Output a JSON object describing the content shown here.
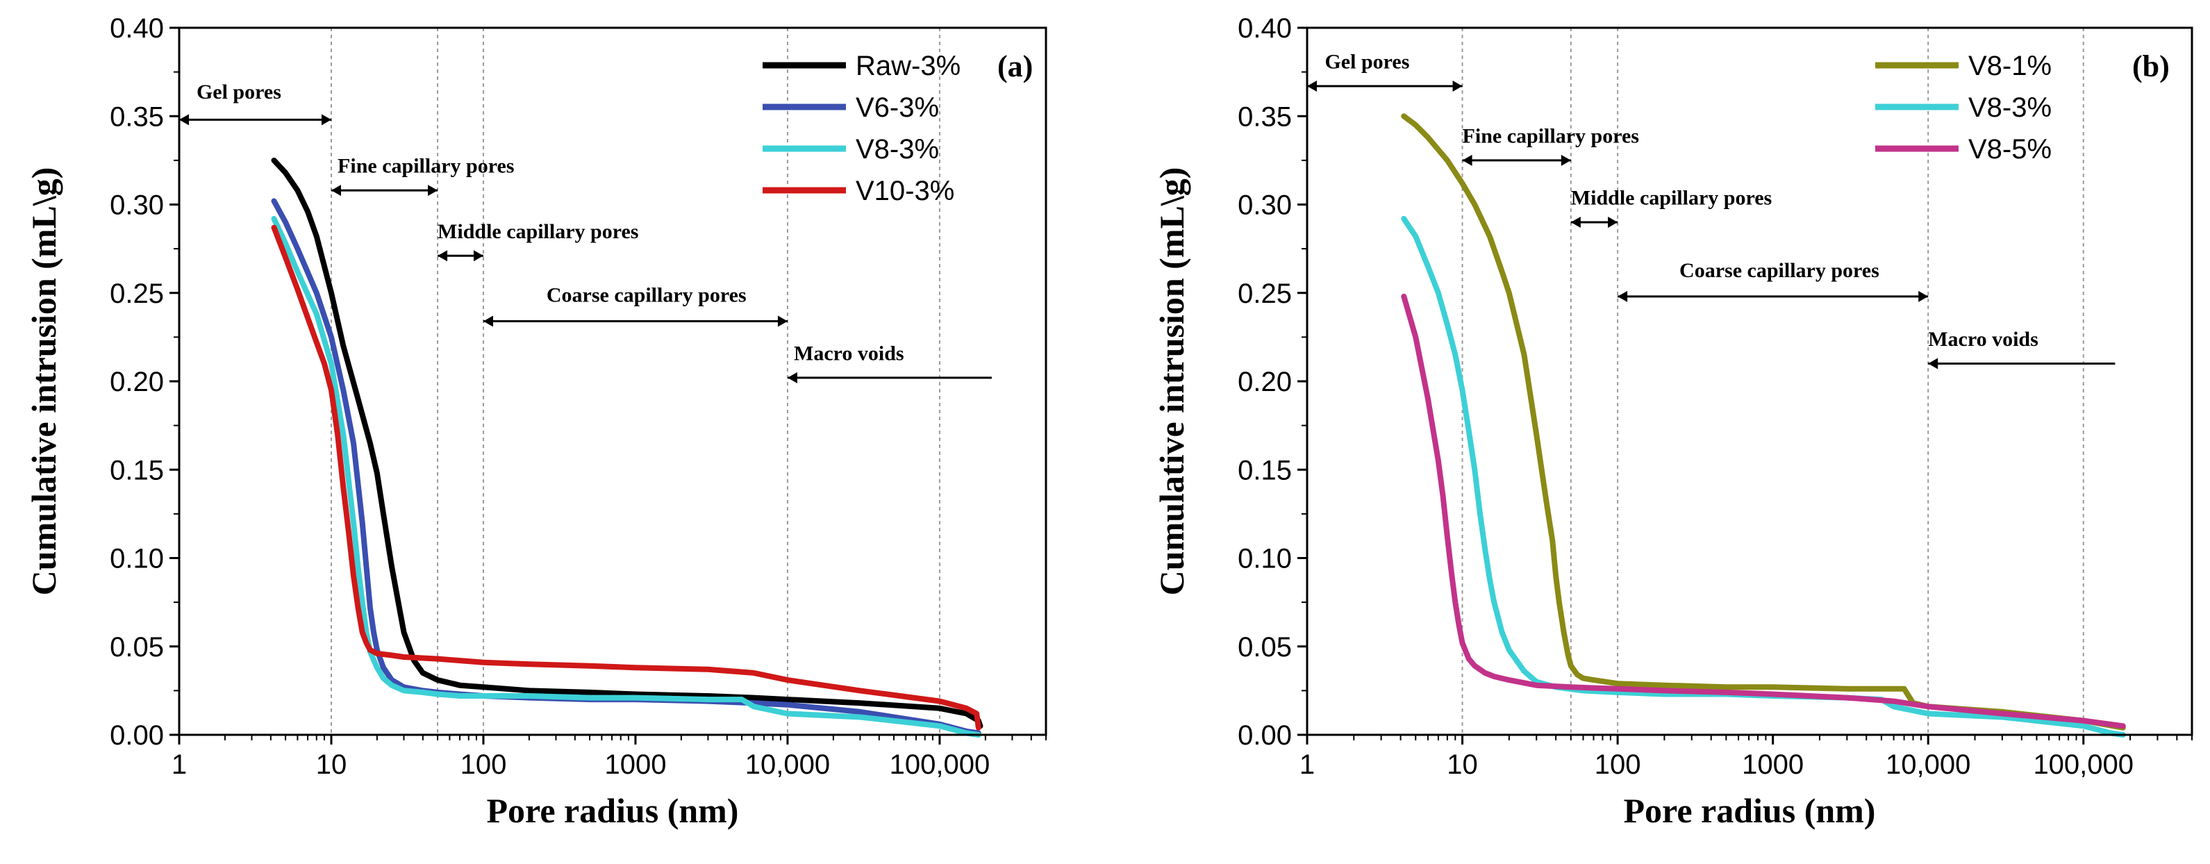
{
  "chart_data": [
    {
      "type": "line",
      "panel": "(a)",
      "xlabel": "Pore radius (nm)",
      "ylabel": "Cumulative intrusion (mL\\g)",
      "xscale": "log",
      "xlim": [
        1,
        500000
      ],
      "ylim": [
        0,
        0.4
      ],
      "xticks": [
        1,
        10,
        100,
        1000,
        10000,
        100000
      ],
      "xtick_labels": [
        "1",
        "10",
        "100",
        "1000",
        "10,000",
        "100,000"
      ],
      "yticks": [
        0,
        0.05,
        0.1,
        0.15,
        0.2,
        0.25,
        0.3,
        0.35,
        0.4
      ],
      "ytick_labels": [
        "0.00",
        "0.05",
        "0.10",
        "0.15",
        "0.20",
        "0.25",
        "0.30",
        "0.35",
        "0.40"
      ],
      "vlines": [
        10,
        50,
        100,
        10000,
        100000
      ],
      "legend_position": "top-right",
      "annotations": [
        {
          "label": "Gel pores",
          "from": 1,
          "to": 10,
          "y": 0.348,
          "arrow": "both",
          "label_y": 0.36,
          "label_x": 1.3
        },
        {
          "label": "Fine capillary pores",
          "from": 10,
          "to": 50,
          "y": 0.308,
          "arrow": "both",
          "label_y": 0.318,
          "label_x": 11
        },
        {
          "label": "Middle capillary pores",
          "from": 50,
          "to": 100,
          "y": 0.271,
          "arrow": "both",
          "label_y": 0.281,
          "label_x": 50
        },
        {
          "label": "Coarse capillary pores",
          "from": 100,
          "to": 10000,
          "y": 0.234,
          "arrow": "both",
          "label_y": 0.245,
          "label_x": 260
        },
        {
          "label": "Macro voids",
          "from": 10000,
          "to": 220000,
          "y": 0.202,
          "arrow": "left",
          "label_y": 0.212,
          "label_x": 11000
        }
      ],
      "series": [
        {
          "name": "Raw-3%",
          "color": "#000000",
          "x": [
            4.2,
            5,
            6,
            7,
            8,
            10,
            12,
            15,
            18,
            20,
            22,
            25,
            28,
            30,
            35,
            40,
            50,
            70,
            100,
            200,
            500,
            1000,
            3000,
            6000,
            10000,
            30000,
            100000,
            150000,
            180000,
            185000
          ],
          "y": [
            0.325,
            0.318,
            0.308,
            0.296,
            0.282,
            0.25,
            0.22,
            0.19,
            0.165,
            0.148,
            0.125,
            0.095,
            0.072,
            0.058,
            0.042,
            0.035,
            0.031,
            0.028,
            0.027,
            0.025,
            0.024,
            0.023,
            0.022,
            0.021,
            0.02,
            0.018,
            0.015,
            0.012,
            0.008,
            0.005
          ]
        },
        {
          "name": "V6-3%",
          "color": "#3a4fb0",
          "x": [
            4.2,
            5,
            6,
            8,
            10,
            12,
            14,
            16,
            17,
            18,
            19,
            20,
            22,
            25,
            30,
            40,
            50,
            70,
            100,
            200,
            500,
            1000,
            3000,
            6000,
            10000,
            30000,
            100000,
            150000,
            180000
          ],
          "y": [
            0.302,
            0.29,
            0.275,
            0.25,
            0.225,
            0.195,
            0.165,
            0.12,
            0.095,
            0.072,
            0.058,
            0.048,
            0.038,
            0.031,
            0.027,
            0.025,
            0.024,
            0.023,
            0.022,
            0.021,
            0.02,
            0.02,
            0.019,
            0.018,
            0.017,
            0.013,
            0.006,
            0.002,
            0.001
          ]
        },
        {
          "name": "V8-3%",
          "color": "#3cd0d6",
          "x": [
            4.2,
            5,
            6,
            8,
            10,
            12,
            14,
            15,
            16,
            17,
            18,
            20,
            22,
            25,
            30,
            40,
            50,
            70,
            100,
            200,
            500,
            1000,
            3000,
            5000,
            6000,
            10000,
            30000,
            100000,
            150000,
            180000
          ],
          "y": [
            0.292,
            0.278,
            0.262,
            0.238,
            0.21,
            0.17,
            0.12,
            0.095,
            0.075,
            0.058,
            0.047,
            0.038,
            0.032,
            0.028,
            0.025,
            0.024,
            0.023,
            0.022,
            0.022,
            0.022,
            0.021,
            0.021,
            0.02,
            0.02,
            0.016,
            0.012,
            0.01,
            0.005,
            0.001,
            0.0
          ]
        },
        {
          "name": "V10-3%",
          "color": "#d01818",
          "x": [
            4.2,
            5,
            6,
            8,
            9,
            10,
            11,
            12,
            13,
            14,
            15,
            16,
            17,
            18,
            20,
            25,
            30,
            50,
            100,
            200,
            500,
            1000,
            3000,
            6000,
            10000,
            30000,
            100000,
            150000,
            175000,
            180000
          ],
          "y": [
            0.287,
            0.27,
            0.252,
            0.222,
            0.21,
            0.195,
            0.17,
            0.14,
            0.115,
            0.09,
            0.072,
            0.058,
            0.052,
            0.048,
            0.046,
            0.045,
            0.044,
            0.043,
            0.041,
            0.04,
            0.039,
            0.038,
            0.037,
            0.035,
            0.031,
            0.025,
            0.019,
            0.015,
            0.012,
            0.004
          ]
        }
      ]
    },
    {
      "type": "line",
      "panel": "(b)",
      "xlabel": "Pore radius (nm)",
      "ylabel": "Cumulative intrusion (mL\\g)",
      "xscale": "log",
      "xlim": [
        1,
        500000
      ],
      "ylim": [
        0,
        0.4
      ],
      "xticks": [
        1,
        10,
        100,
        1000,
        10000,
        100000
      ],
      "xtick_labels": [
        "1",
        "10",
        "100",
        "1000",
        "10,000",
        "100,000"
      ],
      "yticks": [
        0,
        0.05,
        0.1,
        0.15,
        0.2,
        0.25,
        0.3,
        0.35,
        0.4
      ],
      "ytick_labels": [
        "0.00",
        "0.05",
        "0.10",
        "0.15",
        "0.20",
        "0.25",
        "0.30",
        "0.35",
        "0.40"
      ],
      "vlines": [
        10,
        50,
        100,
        10000,
        100000
      ],
      "legend_position": "top-right",
      "annotations": [
        {
          "label": "Gel pores",
          "from": 1,
          "to": 10,
          "y": 0.367,
          "arrow": "both",
          "label_y": 0.377,
          "label_x": 1.3
        },
        {
          "label": "Fine capillary pores",
          "from": 10,
          "to": 50,
          "y": 0.325,
          "arrow": "both",
          "label_y": 0.335,
          "label_x": 10
        },
        {
          "label": "Middle capillary pores",
          "from": 50,
          "to": 100,
          "y": 0.29,
          "arrow": "both",
          "label_y": 0.3,
          "label_x": 50
        },
        {
          "label": "Coarse capillary pores",
          "from": 100,
          "to": 10000,
          "y": 0.248,
          "arrow": "both",
          "label_y": 0.259,
          "label_x": 250
        },
        {
          "label": "Macro voids",
          "from": 10000,
          "to": 160000,
          "y": 0.21,
          "arrow": "left",
          "label_y": 0.22,
          "label_x": 10000
        }
      ],
      "series": [
        {
          "name": "V8-1%",
          "color": "#8a8a16",
          "x": [
            4.2,
            5,
            6,
            8,
            10,
            12,
            15,
            18,
            20,
            25,
            30,
            35,
            38,
            40,
            42,
            45,
            48,
            50,
            55,
            60,
            70,
            100,
            200,
            500,
            1000,
            3000,
            6000,
            7000,
            8000,
            10000,
            30000,
            100000,
            180000
          ],
          "y": [
            0.35,
            0.345,
            0.338,
            0.325,
            0.312,
            0.3,
            0.282,
            0.262,
            0.25,
            0.215,
            0.17,
            0.13,
            0.11,
            0.09,
            0.075,
            0.058,
            0.045,
            0.039,
            0.034,
            0.032,
            0.031,
            0.029,
            0.028,
            0.027,
            0.027,
            0.026,
            0.026,
            0.026,
            0.018,
            0.016,
            0.013,
            0.008,
            0.004
          ]
        },
        {
          "name": "V8-3%",
          "color": "#3cd0d6",
          "x": [
            4.2,
            5,
            6,
            7,
            8,
            9,
            10,
            11,
            12,
            13,
            14,
            15,
            16,
            18,
            20,
            25,
            30,
            40,
            60,
            100,
            200,
            500,
            1000,
            3000,
            5000,
            6000,
            10000,
            30000,
            100000,
            150000,
            180000
          ],
          "y": [
            0.292,
            0.282,
            0.265,
            0.25,
            0.232,
            0.215,
            0.195,
            0.172,
            0.15,
            0.125,
            0.105,
            0.088,
            0.075,
            0.058,
            0.048,
            0.036,
            0.03,
            0.027,
            0.025,
            0.024,
            0.023,
            0.023,
            0.022,
            0.021,
            0.02,
            0.016,
            0.012,
            0.01,
            0.005,
            0.001,
            0.0
          ]
        },
        {
          "name": "V8-5%",
          "color": "#c2338a",
          "x": [
            4.2,
            5,
            6,
            7,
            7.5,
            8,
            8.5,
            9,
            9.5,
            10,
            11,
            12,
            14,
            16,
            20,
            30,
            50,
            100,
            200,
            500,
            1000,
            3000,
            6000,
            10000,
            30000,
            100000,
            180000
          ],
          "y": [
            0.248,
            0.225,
            0.19,
            0.155,
            0.135,
            0.112,
            0.092,
            0.075,
            0.062,
            0.052,
            0.043,
            0.039,
            0.035,
            0.033,
            0.031,
            0.028,
            0.027,
            0.026,
            0.025,
            0.024,
            0.023,
            0.021,
            0.019,
            0.016,
            0.012,
            0.008,
            0.005
          ]
        }
      ]
    }
  ]
}
